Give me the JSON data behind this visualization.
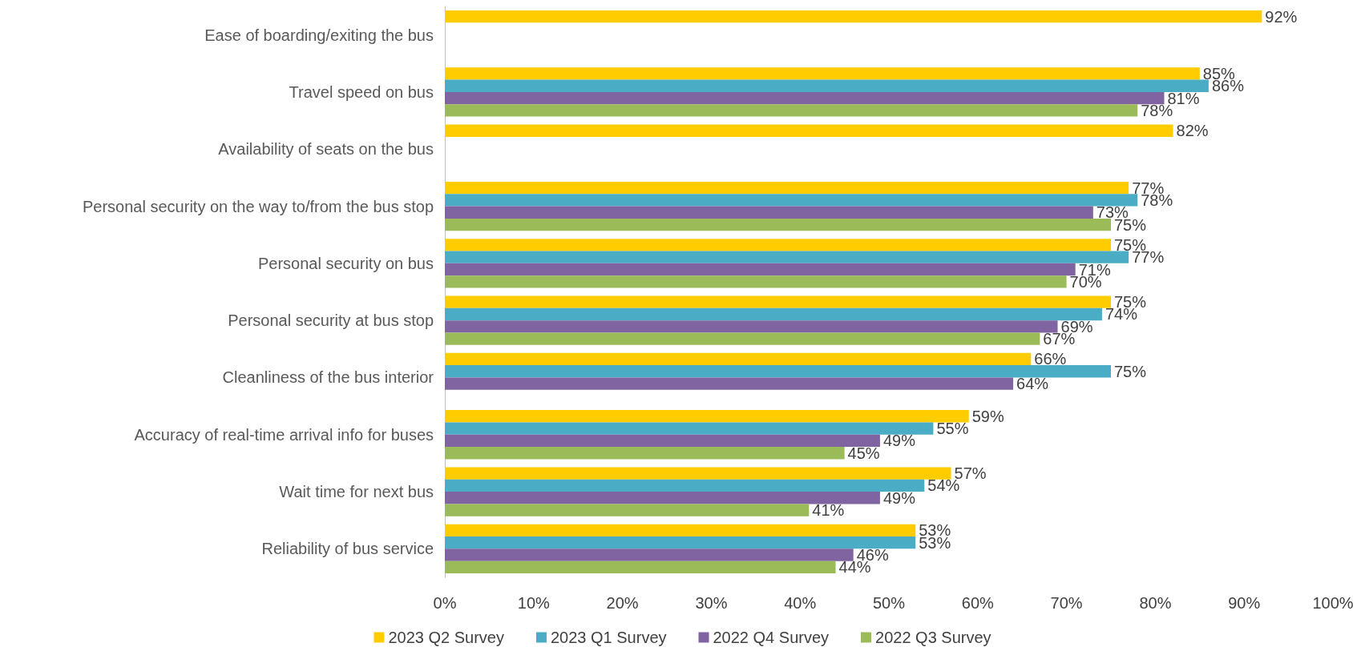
{
  "chart_data": {
    "type": "bar",
    "orientation": "horizontal",
    "categories": [
      "Ease of boarding/exiting the bus",
      "Travel speed on bus",
      "Availability of seats on the bus",
      "Personal security on the way to/from the bus stop",
      "Personal security on bus",
      "Personal security at bus stop",
      "Cleanliness of the bus interior",
      "Accuracy of real-time arrival info for buses",
      "Wait time for next bus",
      "Reliability of bus service"
    ],
    "series": [
      {
        "name": "2023 Q2 Survey",
        "color": "#ffcc00",
        "values": [
          92,
          85,
          82,
          77,
          75,
          75,
          66,
          59,
          57,
          53
        ],
        "value_labels": [
          "92%",
          "85%",
          "82%",
          "77%",
          "75%",
          "75%",
          "66%",
          "59%",
          "57%",
          "53%"
        ]
      },
      {
        "name": "2023 Q1 Survey",
        "color": "#4bacc6",
        "values": [
          null,
          86,
          null,
          78,
          77,
          74,
          75,
          55,
          54,
          53
        ],
        "value_labels": [
          null,
          "86%",
          null,
          "78%",
          "77%",
          "74%",
          "75%",
          "55%",
          "54%",
          "53%"
        ]
      },
      {
        "name": "2022 Q4 Survey",
        "color": "#8064a2",
        "values": [
          null,
          81,
          null,
          73,
          71,
          69,
          64,
          49,
          49,
          46
        ],
        "value_labels": [
          null,
          "81%",
          null,
          "73%",
          "71%",
          "69%",
          "64%",
          "49%",
          "49%",
          "46%"
        ]
      },
      {
        "name": "2022 Q3 Survey",
        "color": "#9bbb59",
        "values": [
          null,
          78,
          null,
          75,
          70,
          67,
          null,
          45,
          41,
          44
        ],
        "value_labels": [
          null,
          "78%",
          null,
          "75%",
          "70%",
          "67%",
          null,
          "45%",
          "41%",
          "44%"
        ]
      }
    ],
    "xlim": [
      0,
      100
    ],
    "xticks": [
      {
        "value": 0,
        "label": "0%"
      },
      {
        "value": 10,
        "label": "10%"
      },
      {
        "value": 20,
        "label": "20%"
      },
      {
        "value": 30,
        "label": "30%"
      },
      {
        "value": 40,
        "label": "40%"
      },
      {
        "value": 50,
        "label": "50%"
      },
      {
        "value": 60,
        "label": "60%"
      },
      {
        "value": 70,
        "label": "70%"
      },
      {
        "value": 80,
        "label": "80%"
      },
      {
        "value": 90,
        "label": "90%"
      },
      {
        "value": 100,
        "label": "100%"
      }
    ],
    "grid": false,
    "legend": "bottom"
  }
}
